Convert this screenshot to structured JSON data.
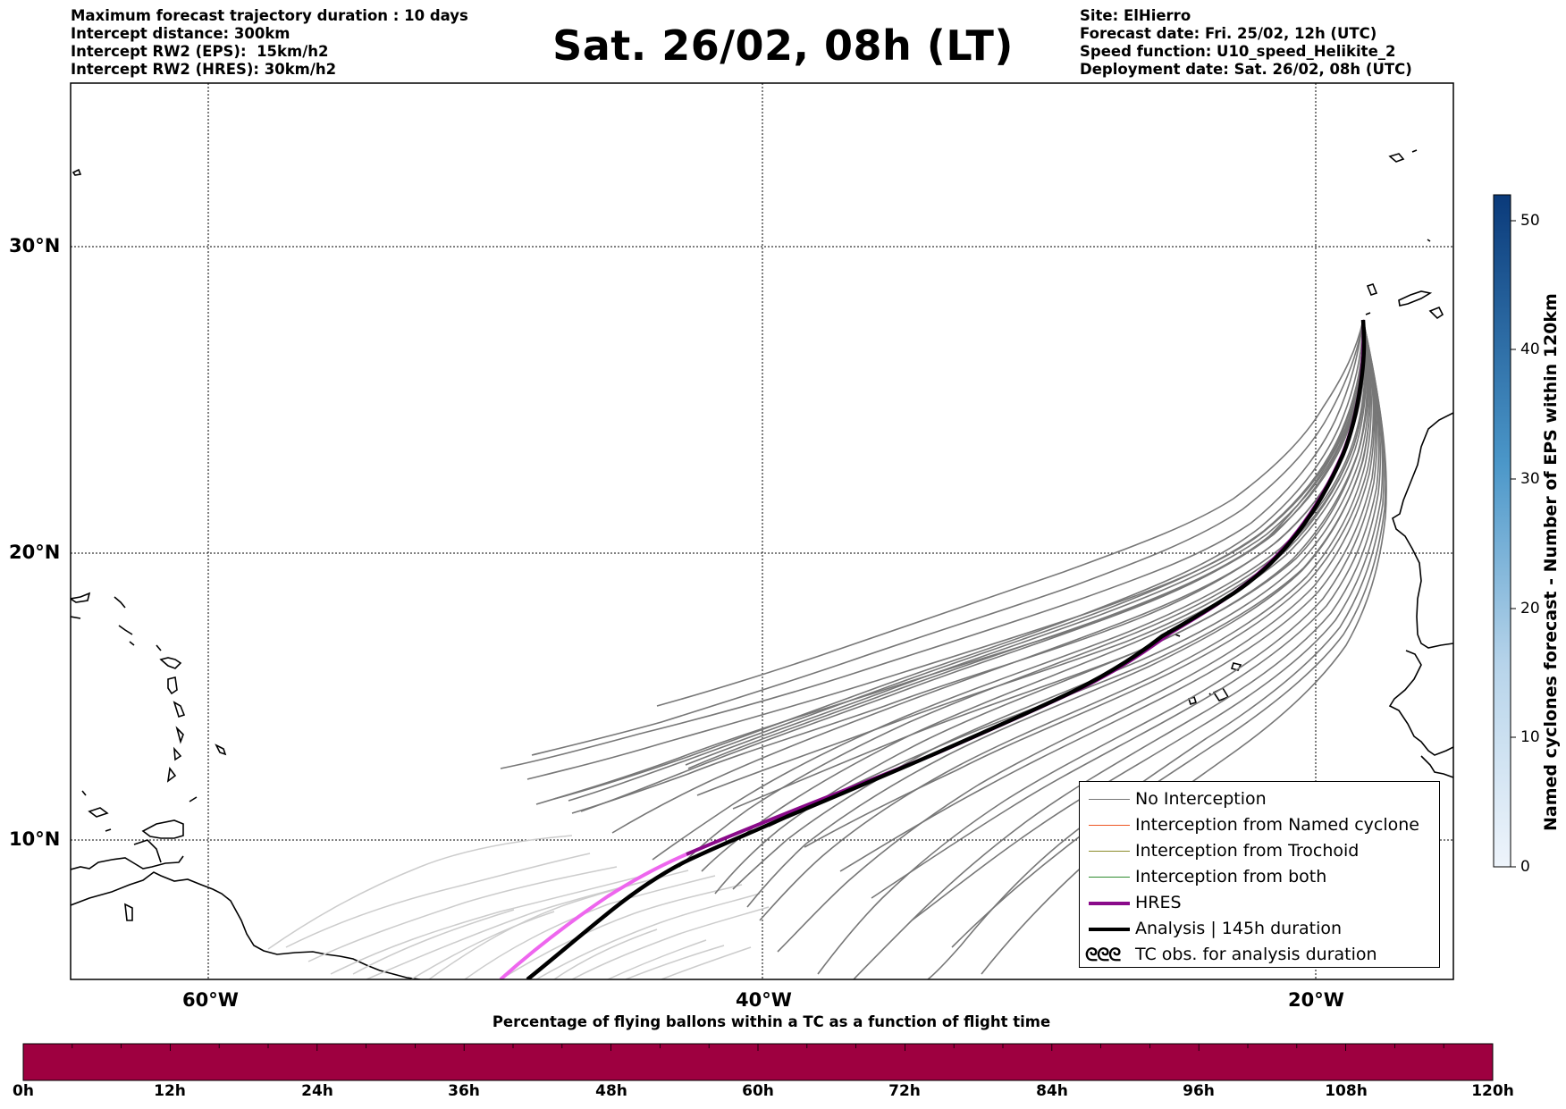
{
  "header_left": {
    "line1": "Maximum forecast trajectory duration : 10 days",
    "line2": "Intercept distance: 300km",
    "line3": "Intercept RW2 (EPS):  15km/h2",
    "line4": "Intercept RW2 (HRES): 30km/h2"
  },
  "title": "Sat. 26/02, 08h (LT)",
  "header_right": {
    "line1": "Site: ElHierro",
    "line2": "Forecast date: Fri. 25/02, 12h (UTC)",
    "line3": "Speed function: U10_speed_Helikite_2",
    "line4": "Deployment date: Sat. 26/02, 08h (UTC)"
  },
  "map": {
    "lat_labels": [
      "30°N",
      "20°N",
      "10°N"
    ],
    "lon_labels": [
      "60°W",
      "40°W",
      "20°W"
    ],
    "gridlines": true,
    "colors": {
      "eps_no_interception": "#777777",
      "eps_faded": "#cccccc",
      "hres": "#8a0a8a",
      "hres_faded": "#ee66ee",
      "analysis": "#000000",
      "coastline": "#000000"
    }
  },
  "legend": {
    "items": [
      {
        "label": "No Interception",
        "color": "#777777",
        "icon": "line"
      },
      {
        "label": "Interception from Named cyclone",
        "color": "#ee5522",
        "icon": "line"
      },
      {
        "label": "Interception from Trochoid",
        "color": "#8b8b2a",
        "icon": "line"
      },
      {
        "label": "Interception from both",
        "color": "#2e8b2e",
        "icon": "line"
      },
      {
        "label": "HRES",
        "color": "#8a0a8a",
        "icon": "thick-line"
      },
      {
        "label": "Analysis | 145h duration",
        "color": "#000000",
        "icon": "thick-line"
      },
      {
        "label": "TC obs. for analysis duration",
        "icon": "cyclone-symbols",
        "symbol_text": "ᘓᘓᘓ"
      }
    ]
  },
  "colorbar": {
    "title": "Named cyclones forecast - Number of EPS within 120km",
    "ticks": [
      "0",
      "10",
      "20",
      "30",
      "40",
      "50"
    ],
    "min": 0,
    "max": 52,
    "color_low": "#e8f1fa",
    "color_high": "#08306b"
  },
  "timebar": {
    "title": "Percentage of flying ballons within a TC as a function of flight time",
    "labels": [
      "0h",
      "12h",
      "24h",
      "36h",
      "48h",
      "60h",
      "72h",
      "84h",
      "96h",
      "108h",
      "120h"
    ],
    "fill_color": "#9e0040"
  }
}
